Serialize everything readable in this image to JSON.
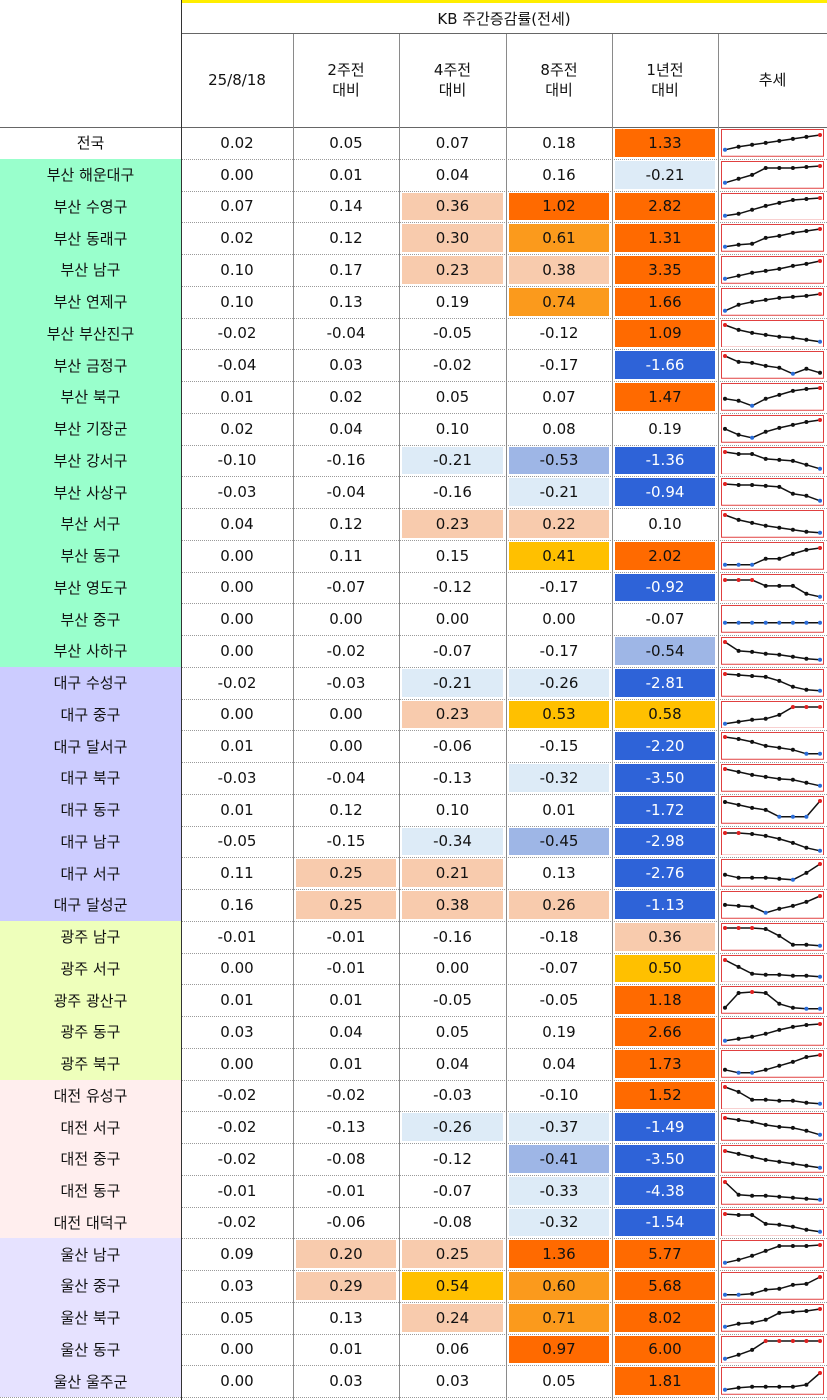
{
  "header": {
    "title": "KB 주간증감률(전세)",
    "columns": [
      {
        "line1": "25/8/18",
        "line2": ""
      },
      {
        "line1": "2주전",
        "line2": "대비"
      },
      {
        "line1": "4주전",
        "line2": "대비"
      },
      {
        "line1": "8주전",
        "line2": "대비"
      },
      {
        "line1": "1년전",
        "line2": "대비"
      },
      {
        "line1": "추세",
        "line2": ""
      }
    ]
  },
  "colors": {
    "region_national": "#ffffff",
    "region_busan": "#99ffcc",
    "region_daegu": "#ccccff",
    "region_gwangju": "#eeffbb",
    "region_daejeon": "#ffeeee",
    "region_ulsan": "#e6e2ff",
    "pos_light": "#f8cbad",
    "pos_mid": "#ffc000",
    "pos_orange": "#fb9a1c",
    "pos_strong": "#ff6a00",
    "neg_light": "#ddebf7",
    "neg_mid": "#9eb6e6",
    "neg_strong": "#2e63d8",
    "title_border": "#ffee00"
  },
  "rows": [
    {
      "name": "전국",
      "group": "national",
      "values": [
        "0.02",
        "0.05",
        "0.07",
        "0.18",
        "1.33"
      ],
      "shade": [
        "",
        "",
        "",
        "",
        "pos_strong"
      ],
      "trend": [
        0.15,
        0.3,
        0.4,
        0.5,
        0.6,
        0.7,
        0.8,
        0.9
      ]
    },
    {
      "name": "부산 해운대구",
      "group": "busan",
      "values": [
        "0.00",
        "0.01",
        "0.04",
        "0.16",
        "-0.21"
      ],
      "shade": [
        "",
        "",
        "",
        "",
        "neg_light"
      ],
      "trend": [
        0.1,
        0.3,
        0.5,
        0.85,
        0.85,
        0.85,
        0.9,
        0.95
      ]
    },
    {
      "name": "부산 수영구",
      "group": "busan",
      "values": [
        "0.07",
        "0.14",
        "0.36",
        "1.02",
        "2.82"
      ],
      "shade": [
        "",
        "",
        "pos_light",
        "pos_strong",
        "pos_strong"
      ],
      "trend": [
        0.05,
        0.15,
        0.35,
        0.55,
        0.7,
        0.85,
        0.9,
        0.95
      ]
    },
    {
      "name": "부산 동래구",
      "group": "busan",
      "values": [
        "0.02",
        "0.12",
        "0.30",
        "0.61",
        "1.31"
      ],
      "shade": [
        "",
        "",
        "pos_light",
        "pos_orange",
        "pos_strong"
      ],
      "trend": [
        0.05,
        0.15,
        0.2,
        0.5,
        0.6,
        0.75,
        0.85,
        0.95
      ]
    },
    {
      "name": "부산 남구",
      "group": "busan",
      "values": [
        "0.10",
        "0.17",
        "0.23",
        "0.38",
        "3.35"
      ],
      "shade": [
        "",
        "",
        "pos_light",
        "pos_light",
        "pos_strong"
      ],
      "trend": [
        0.05,
        0.2,
        0.35,
        0.45,
        0.55,
        0.7,
        0.8,
        0.95
      ]
    },
    {
      "name": "부산 연제구",
      "group": "busan",
      "values": [
        "0.10",
        "0.13",
        "0.19",
        "0.74",
        "1.66"
      ],
      "shade": [
        "",
        "",
        "",
        "pos_orange",
        "pos_strong"
      ],
      "trend": [
        0.05,
        0.35,
        0.5,
        0.6,
        0.7,
        0.75,
        0.8,
        0.9
      ]
    },
    {
      "name": "부산 부산진구",
      "group": "busan",
      "values": [
        "-0.02",
        "-0.04",
        "-0.05",
        "-0.12",
        "1.09"
      ],
      "shade": [
        "",
        "",
        "",
        "",
        "pos_strong"
      ],
      "trend": [
        0.95,
        0.7,
        0.55,
        0.45,
        0.35,
        0.3,
        0.2,
        0.1
      ]
    },
    {
      "name": "부산 금정구",
      "group": "busan",
      "values": [
        "-0.04",
        "0.03",
        "-0.02",
        "-0.17",
        "-1.66"
      ],
      "shade": [
        "",
        "",
        "",
        "",
        "neg_strong"
      ],
      "trend": [
        0.95,
        0.65,
        0.6,
        0.45,
        0.35,
        0.05,
        0.3,
        0.1
      ]
    },
    {
      "name": "부산 북구",
      "group": "busan",
      "values": [
        "0.01",
        "0.02",
        "0.05",
        "0.07",
        "1.47"
      ],
      "shade": [
        "",
        "",
        "",
        "",
        "pos_strong"
      ],
      "trend": [
        0.4,
        0.3,
        0.05,
        0.4,
        0.6,
        0.8,
        0.9,
        0.95
      ]
    },
    {
      "name": "부산 기장군",
      "group": "busan",
      "values": [
        "0.02",
        "0.04",
        "0.10",
        "0.08",
        "0.19"
      ],
      "shade": [
        "",
        "",
        "",
        "",
        ""
      ],
      "trend": [
        0.5,
        0.2,
        0.05,
        0.35,
        0.55,
        0.7,
        0.85,
        0.95
      ]
    },
    {
      "name": "부산 강서구",
      "group": "busan",
      "values": [
        "-0.10",
        "-0.16",
        "-0.21",
        "-0.53",
        "-1.36"
      ],
      "shade": [
        "",
        "",
        "neg_light",
        "neg_mid",
        "neg_strong"
      ],
      "trend": [
        0.95,
        0.85,
        0.85,
        0.6,
        0.55,
        0.5,
        0.3,
        0.1
      ]
    },
    {
      "name": "부산 사상구",
      "group": "busan",
      "values": [
        "-0.03",
        "-0.04",
        "-0.16",
        "-0.21",
        "-0.94"
      ],
      "shade": [
        "",
        "",
        "",
        "neg_light",
        "neg_strong"
      ],
      "trend": [
        0.9,
        0.85,
        0.85,
        0.8,
        0.75,
        0.4,
        0.3,
        0.05
      ]
    },
    {
      "name": "부산 서구",
      "group": "busan",
      "values": [
        "0.04",
        "0.12",
        "0.23",
        "0.22",
        "0.10"
      ],
      "shade": [
        "",
        "",
        "pos_light",
        "pos_light",
        ""
      ],
      "trend": [
        0.95,
        0.7,
        0.55,
        0.4,
        0.3,
        0.2,
        0.1,
        0.05
      ]
    },
    {
      "name": "부산 동구",
      "group": "busan",
      "values": [
        "0.00",
        "0.11",
        "0.15",
        "0.41",
        "2.02"
      ],
      "shade": [
        "",
        "",
        "",
        "pos_mid",
        "pos_strong"
      ],
      "trend": [
        0.05,
        0.05,
        0.05,
        0.35,
        0.35,
        0.6,
        0.8,
        0.9
      ]
    },
    {
      "name": "부산 영도구",
      "group": "busan",
      "values": [
        "0.00",
        "-0.07",
        "-0.12",
        "-0.17",
        "-0.92"
      ],
      "shade": [
        "",
        "",
        "",
        "",
        "neg_strong"
      ],
      "trend": [
        0.9,
        0.9,
        0.9,
        0.6,
        0.6,
        0.6,
        0.2,
        0.05
      ]
    },
    {
      "name": "부산 중구",
      "group": "busan",
      "values": [
        "0.00",
        "0.00",
        "0.00",
        "0.00",
        "-0.07"
      ],
      "shade": [
        "",
        "",
        "",
        "",
        ""
      ],
      "trend": [
        0.3,
        0.3,
        0.3,
        0.3,
        0.3,
        0.3,
        0.3,
        0.3
      ]
    },
    {
      "name": "부산 사하구",
      "group": "busan",
      "values": [
        "0.00",
        "-0.02",
        "-0.07",
        "-0.17",
        "-0.54"
      ],
      "shade": [
        "",
        "",
        "",
        "",
        "neg_mid"
      ],
      "trend": [
        0.95,
        0.5,
        0.45,
        0.35,
        0.3,
        0.2,
        0.1,
        0.05
      ]
    },
    {
      "name": "대구 수성구",
      "group": "daegu",
      "values": [
        "-0.02",
        "-0.03",
        "-0.21",
        "-0.26",
        "-2.81"
      ],
      "shade": [
        "",
        "",
        "neg_light",
        "neg_light",
        "neg_strong"
      ],
      "trend": [
        0.95,
        0.9,
        0.85,
        0.8,
        0.6,
        0.3,
        0.15,
        0.1
      ]
    },
    {
      "name": "대구 중구",
      "group": "daegu",
      "values": [
        "0.00",
        "0.00",
        "0.23",
        "0.53",
        "0.58"
      ],
      "shade": [
        "",
        "",
        "pos_light",
        "pos_mid",
        "pos_mid"
      ],
      "trend": [
        0.05,
        0.15,
        0.25,
        0.3,
        0.5,
        0.9,
        0.9,
        0.9
      ]
    },
    {
      "name": "대구 달서구",
      "group": "daegu",
      "values": [
        "0.01",
        "0.00",
        "-0.06",
        "-0.15",
        "-2.20"
      ],
      "shade": [
        "",
        "",
        "",
        "",
        "neg_strong"
      ],
      "trend": [
        0.95,
        0.85,
        0.7,
        0.5,
        0.4,
        0.3,
        0.1,
        0.1
      ]
    },
    {
      "name": "대구 북구",
      "group": "daegu",
      "values": [
        "-0.03",
        "-0.04",
        "-0.13",
        "-0.32",
        "-3.50"
      ],
      "shade": [
        "",
        "",
        "",
        "neg_light",
        "neg_strong"
      ],
      "trend": [
        0.95,
        0.8,
        0.65,
        0.55,
        0.45,
        0.4,
        0.25,
        0.1
      ]
    },
    {
      "name": "대구 동구",
      "group": "daegu",
      "values": [
        "0.01",
        "0.12",
        "0.10",
        "0.01",
        "-1.72"
      ],
      "shade": [
        "",
        "",
        "",
        "",
        "neg_strong"
      ],
      "trend": [
        0.9,
        0.75,
        0.6,
        0.5,
        0.15,
        0.15,
        0.15,
        0.95
      ]
    },
    {
      "name": "대구 남구",
      "group": "daegu",
      "values": [
        "-0.05",
        "-0.15",
        "-0.34",
        "-0.45",
        "-2.98"
      ],
      "shade": [
        "",
        "",
        "neg_light",
        "neg_mid",
        "neg_strong"
      ],
      "trend": [
        0.95,
        0.95,
        0.9,
        0.8,
        0.65,
        0.45,
        0.2,
        0.05
      ]
    },
    {
      "name": "대구 서구",
      "group": "daegu",
      "values": [
        "0.11",
        "0.25",
        "0.21",
        "0.13",
        "-2.76"
      ],
      "shade": [
        "",
        "pos_light",
        "pos_light",
        "",
        "neg_strong"
      ],
      "trend": [
        0.4,
        0.25,
        0.25,
        0.25,
        0.2,
        0.15,
        0.5,
        0.95
      ]
    },
    {
      "name": "대구 달성군",
      "group": "daegu",
      "values": [
        "0.16",
        "0.25",
        "0.38",
        "0.26",
        "-1.13"
      ],
      "shade": [
        "",
        "pos_light",
        "pos_light",
        "pos_light",
        "neg_strong"
      ],
      "trend": [
        0.5,
        0.45,
        0.4,
        0.1,
        0.3,
        0.45,
        0.65,
        0.95
      ]
    },
    {
      "name": "광주 남구",
      "group": "gwangju",
      "values": [
        "-0.01",
        "-0.01",
        "-0.16",
        "-0.18",
        "0.36"
      ],
      "shade": [
        "",
        "",
        "",
        "",
        "pos_light"
      ],
      "trend": [
        0.95,
        0.95,
        0.95,
        0.9,
        0.55,
        0.1,
        0.1,
        0.05
      ]
    },
    {
      "name": "광주 서구",
      "group": "gwangju",
      "values": [
        "0.00",
        "-0.01",
        "0.00",
        "-0.07",
        "0.50"
      ],
      "shade": [
        "",
        "",
        "",
        "",
        "pos_mid"
      ],
      "trend": [
        0.95,
        0.6,
        0.25,
        0.2,
        0.2,
        0.15,
        0.15,
        0.1
      ]
    },
    {
      "name": "광주 광산구",
      "group": "gwangju",
      "values": [
        "0.01",
        "0.01",
        "-0.05",
        "-0.05",
        "1.18"
      ],
      "shade": [
        "",
        "",
        "",
        "",
        "pos_strong"
      ],
      "trend": [
        0.1,
        0.85,
        0.9,
        0.85,
        0.3,
        0.1,
        0.05,
        0.05
      ]
    },
    {
      "name": "광주 동구",
      "group": "gwangju",
      "values": [
        "0.03",
        "0.04",
        "0.05",
        "0.19",
        "2.66"
      ],
      "shade": [
        "",
        "",
        "",
        "",
        "pos_strong"
      ],
      "trend": [
        0.05,
        0.15,
        0.25,
        0.4,
        0.6,
        0.75,
        0.85,
        0.9
      ]
    },
    {
      "name": "광주 북구",
      "group": "gwangju",
      "values": [
        "0.00",
        "0.01",
        "0.04",
        "0.04",
        "1.73"
      ],
      "shade": [
        "",
        "",
        "",
        "",
        "pos_strong"
      ],
      "trend": [
        0.2,
        0.05,
        0.05,
        0.2,
        0.4,
        0.6,
        0.85,
        0.95
      ]
    },
    {
      "name": "대전 유성구",
      "group": "daejeon",
      "values": [
        "-0.02",
        "-0.02",
        "-0.03",
        "-0.10",
        "1.52"
      ],
      "shade": [
        "",
        "",
        "",
        "",
        "pos_strong"
      ],
      "trend": [
        0.95,
        0.7,
        0.3,
        0.3,
        0.25,
        0.25,
        0.15,
        0.1
      ]
    },
    {
      "name": "대전 서구",
      "group": "daejeon",
      "values": [
        "-0.02",
        "-0.13",
        "-0.26",
        "-0.37",
        "-1.49"
      ],
      "shade": [
        "",
        "",
        "neg_light",
        "neg_light",
        "neg_strong"
      ],
      "trend": [
        0.95,
        0.85,
        0.75,
        0.6,
        0.5,
        0.45,
        0.3,
        0.1
      ]
    },
    {
      "name": "대전 중구",
      "group": "daejeon",
      "values": [
        "-0.02",
        "-0.08",
        "-0.12",
        "-0.41",
        "-3.50"
      ],
      "shade": [
        "",
        "",
        "",
        "neg_mid",
        "neg_strong"
      ],
      "trend": [
        0.9,
        0.75,
        0.6,
        0.45,
        0.35,
        0.25,
        0.15,
        0.05
      ]
    },
    {
      "name": "대전 동구",
      "group": "daejeon",
      "values": [
        "-0.01",
        "-0.01",
        "-0.07",
        "-0.33",
        "-4.38"
      ],
      "shade": [
        "",
        "",
        "",
        "neg_light",
        "neg_strong"
      ],
      "trend": [
        0.95,
        0.3,
        0.25,
        0.25,
        0.2,
        0.15,
        0.1,
        0.05
      ]
    },
    {
      "name": "대전 대덕구",
      "group": "daejeon",
      "values": [
        "-0.02",
        "-0.06",
        "-0.08",
        "-0.32",
        "-1.54"
      ],
      "shade": [
        "",
        "",
        "",
        "neg_light",
        "neg_strong"
      ],
      "trend": [
        0.95,
        0.9,
        0.9,
        0.45,
        0.4,
        0.3,
        0.15,
        0.05
      ]
    },
    {
      "name": "울산 남구",
      "group": "ulsan",
      "values": [
        "0.09",
        "0.20",
        "0.25",
        "1.36",
        "5.77"
      ],
      "shade": [
        "",
        "pos_light",
        "pos_light",
        "pos_strong",
        "pos_strong"
      ],
      "trend": [
        0.05,
        0.2,
        0.4,
        0.65,
        0.9,
        0.9,
        0.9,
        0.95
      ]
    },
    {
      "name": "울산 중구",
      "group": "ulsan",
      "values": [
        "0.03",
        "0.29",
        "0.54",
        "0.60",
        "5.68"
      ],
      "shade": [
        "",
        "pos_light",
        "pos_mid",
        "pos_orange",
        "pos_strong"
      ],
      "trend": [
        0.05,
        0.05,
        0.1,
        0.3,
        0.35,
        0.55,
        0.6,
        0.95
      ]
    },
    {
      "name": "울산 북구",
      "group": "ulsan",
      "values": [
        "0.05",
        "0.13",
        "0.24",
        "0.71",
        "8.02"
      ],
      "shade": [
        "",
        "",
        "pos_light",
        "pos_orange",
        "pos_strong"
      ],
      "trend": [
        0.05,
        0.2,
        0.25,
        0.4,
        0.75,
        0.8,
        0.85,
        0.95
      ]
    },
    {
      "name": "울산 동구",
      "group": "ulsan",
      "values": [
        "0.00",
        "0.01",
        "0.06",
        "0.97",
        "6.00"
      ],
      "shade": [
        "",
        "",
        "",
        "pos_strong",
        "pos_strong"
      ],
      "trend": [
        0.05,
        0.25,
        0.5,
        0.95,
        0.95,
        0.95,
        0.95,
        0.95
      ]
    },
    {
      "name": "울산 울주군",
      "group": "ulsan",
      "values": [
        "0.00",
        "0.03",
        "0.03",
        "0.05",
        "1.81"
      ],
      "shade": [
        "",
        "",
        "",
        "",
        "pos_strong"
      ],
      "trend": [
        0.05,
        0.15,
        0.2,
        0.2,
        0.2,
        0.2,
        0.3,
        0.9
      ]
    }
  ]
}
